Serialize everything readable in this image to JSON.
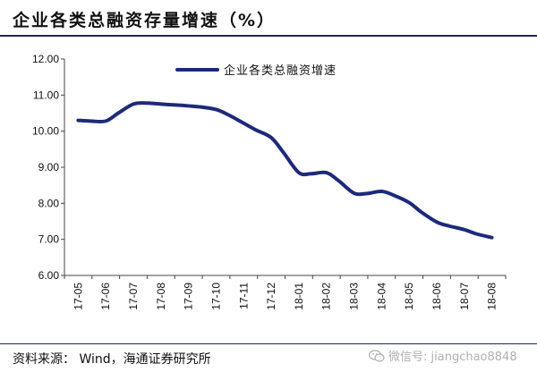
{
  "header": {
    "title": "企业各类总融资存量增速（%）"
  },
  "footer": {
    "source": "资料来源： Wind，海通证券研究所",
    "watermark": "微信号: jiangchao8848"
  },
  "colors": {
    "line": "#1d2a7a",
    "rule": "#1d2a57",
    "icon": "wechat-icon"
  },
  "chart_data": {
    "type": "line",
    "title": "",
    "xlabel": "",
    "ylabel": "",
    "ylim": [
      6.0,
      12.0
    ],
    "yticks": [
      "6.00",
      "7.00",
      "8.00",
      "9.00",
      "10.00",
      "11.00",
      "12.00"
    ],
    "categories": [
      "17-05",
      "17-06",
      "17-07",
      "17-08",
      "17-09",
      "17-10",
      "17-11",
      "17-12",
      "18-01",
      "18-02",
      "18-03",
      "18-04",
      "18-05",
      "18-06",
      "18-07",
      "18-08"
    ],
    "grid": false,
    "legend_position": "top",
    "series": [
      {
        "name": "企业各类总融资增速",
        "x": [
          "17-05",
          "17-05",
          "17-06",
          "17-06",
          "17-07",
          "17-07",
          "17-08",
          "17-08",
          "17-09",
          "17-09",
          "17-10",
          "17-10",
          "17-11",
          "17-11",
          "17-12",
          "17-12",
          "18-01",
          "18-01",
          "18-02",
          "18-02",
          "18-03",
          "18-03",
          "18-04",
          "18-04",
          "18-05",
          "18-05",
          "18-06",
          "18-06",
          "18-07",
          "18-07",
          "18-08"
        ],
        "values": [
          10.3,
          10.28,
          10.28,
          10.5,
          10.75,
          10.78,
          10.75,
          10.73,
          10.7,
          10.67,
          10.6,
          10.45,
          10.22,
          10.03,
          9.82,
          9.4,
          8.85,
          8.82,
          8.85,
          8.62,
          8.28,
          8.27,
          8.33,
          8.22,
          8.02,
          7.75,
          7.48,
          7.37,
          7.27,
          7.15,
          7.05
        ]
      }
    ]
  }
}
